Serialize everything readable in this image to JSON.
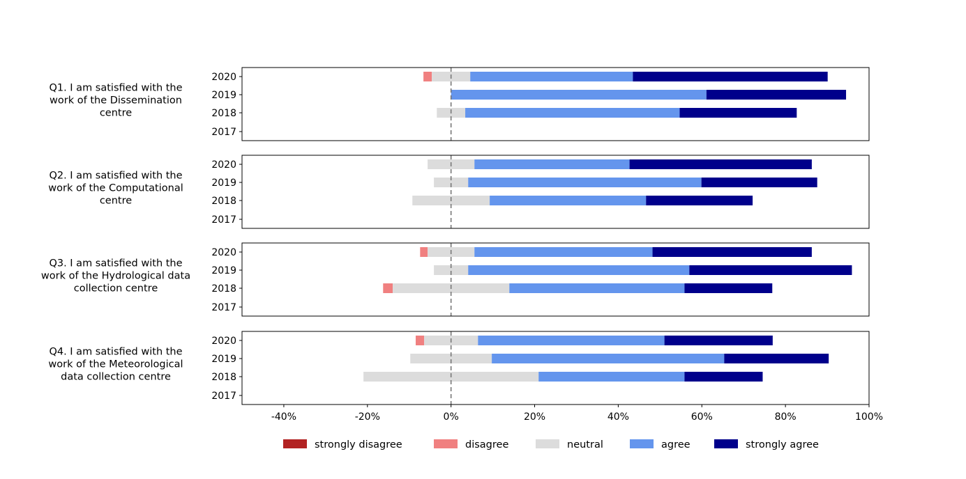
{
  "chart_data": {
    "type": "bar",
    "orientation": "horizontal-diverging-stacked",
    "xlim": [
      -50,
      100
    ],
    "x_ticks": [
      -40,
      -20,
      0,
      20,
      40,
      60,
      80,
      100
    ],
    "x_tick_labels": [
      "-40%",
      "-20%",
      "0%",
      "20%",
      "40%",
      "60%",
      "80%",
      "100%"
    ],
    "grid": false,
    "legend_position": "bottom",
    "zero_line": "dashed",
    "categories": [
      "strongly disagree",
      "disagree",
      "neutral",
      "agree",
      "strongly agree"
    ],
    "colors": [
      "#b22222",
      "#f08080",
      "#dcdcdc",
      "#6495ed",
      "#00008b"
    ],
    "years": [
      "2020",
      "2019",
      "2018",
      "2017"
    ],
    "panels": [
      {
        "question": "Q1. I am satisfied with the work of the Dissemination centre",
        "question_lines": [
          "Q1. I am satisfied with the",
          "work of the Dissemination",
          "centre"
        ],
        "values": {
          "2020": [
            0,
            2.0,
            9.2,
            38.9,
            46.6
          ],
          "2019": [
            0,
            0,
            0,
            61.1,
            33.4
          ],
          "2018": [
            0,
            0,
            6.8,
            51.3,
            28.0
          ],
          "2017": [
            0,
            0,
            0,
            0,
            0
          ]
        }
      },
      {
        "question": "Q2. I am satisfied with the work of the Computational centre",
        "question_lines": [
          "Q2. I am satisfied with the",
          "work of the Computational",
          "centre"
        ],
        "values": {
          "2020": [
            0,
            0,
            11.2,
            37.1,
            43.6
          ],
          "2019": [
            0,
            0,
            8.2,
            55.8,
            27.7
          ],
          "2018": [
            0,
            0,
            18.5,
            37.4,
            25.5
          ],
          "2017": [
            0,
            0,
            0,
            0,
            0
          ]
        }
      },
      {
        "question": "Q3. I am satisfied with the work of the Hydrological data collection centre",
        "question_lines": [
          "Q3. I am satisfied with the",
          "work of the Hydrological data",
          "collection centre"
        ],
        "values": {
          "2020": [
            0,
            1.8,
            11.2,
            42.6,
            38.1
          ],
          "2019": [
            0,
            0,
            8.2,
            52.9,
            38.9
          ],
          "2018": [
            0,
            2.3,
            27.9,
            41.9,
            21.0
          ],
          "2017": [
            0,
            0,
            0,
            0,
            0
          ]
        }
      },
      {
        "question": "Q4. I am satisfied with the work of the Meteorological data collection centre",
        "question_lines": [
          "Q4. I am satisfied with the",
          "work of the Meteorological",
          "data collection centre"
        ],
        "values": {
          "2020": [
            0,
            2.0,
            12.9,
            44.6,
            25.9
          ],
          "2019": [
            0,
            0,
            19.5,
            55.6,
            25.0
          ],
          "2018": [
            0,
            0,
            41.9,
            34.9,
            18.7
          ],
          "2017": [
            0,
            0,
            0,
            0,
            0
          ]
        }
      }
    ]
  }
}
